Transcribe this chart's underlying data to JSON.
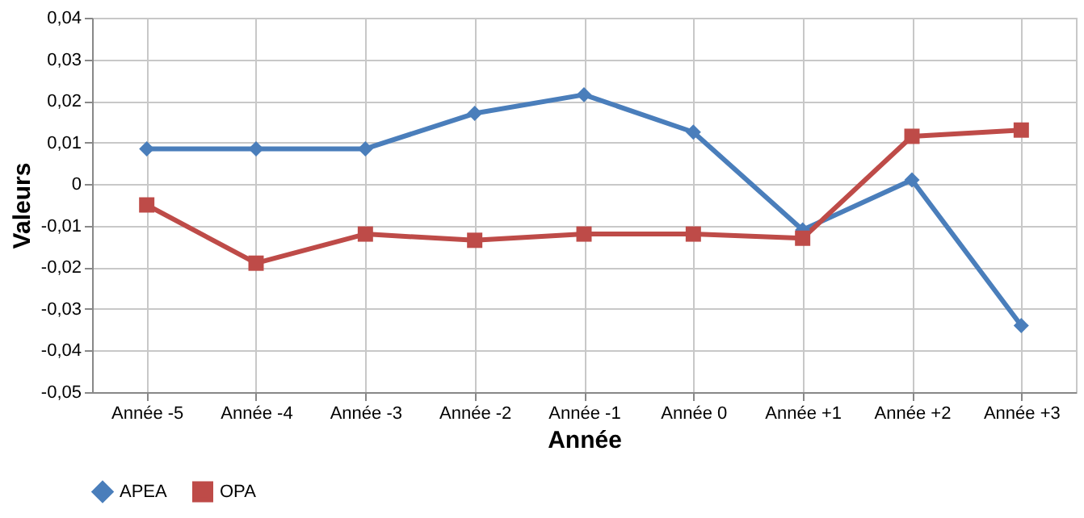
{
  "chart_data": {
    "type": "line",
    "xlabel": "Année",
    "ylabel": "Valeurs",
    "categories": [
      "Année -5",
      "Année -4",
      "Année -3",
      "Année -2",
      "Année -1",
      "Année 0",
      "Année +1",
      "Année +2",
      "Année +3"
    ],
    "series": [
      {
        "name": "APEA",
        "color": "#4a7ebb",
        "marker": "diamond",
        "values": [
          0.0085,
          0.0085,
          0.0085,
          0.017,
          0.0215,
          0.0125,
          -0.011,
          0.001,
          -0.034
        ]
      },
      {
        "name": "OPA",
        "color": "#be4b48",
        "marker": "square",
        "values": [
          -0.005,
          -0.019,
          -0.012,
          -0.0135,
          -0.012,
          -0.012,
          -0.013,
          0.0115,
          0.013
        ]
      }
    ],
    "ylim": [
      -0.05,
      0.04
    ],
    "yticks": [
      {
        "value": -0.05,
        "label": "-0,05"
      },
      {
        "value": -0.04,
        "label": "-0,04"
      },
      {
        "value": -0.03,
        "label": "-0,03"
      },
      {
        "value": -0.02,
        "label": "-0,02"
      },
      {
        "value": -0.01,
        "label": "-0,01"
      },
      0,
      {
        "value": 0.01,
        "label": "0,01"
      },
      {
        "value": 0.02,
        "label": "0,02"
      },
      {
        "value": 0.03,
        "label": "0,03"
      },
      {
        "value": 0.04,
        "label": "0,04"
      }
    ],
    "grid": true,
    "legend": "bottom",
    "line_style": "solid"
  }
}
